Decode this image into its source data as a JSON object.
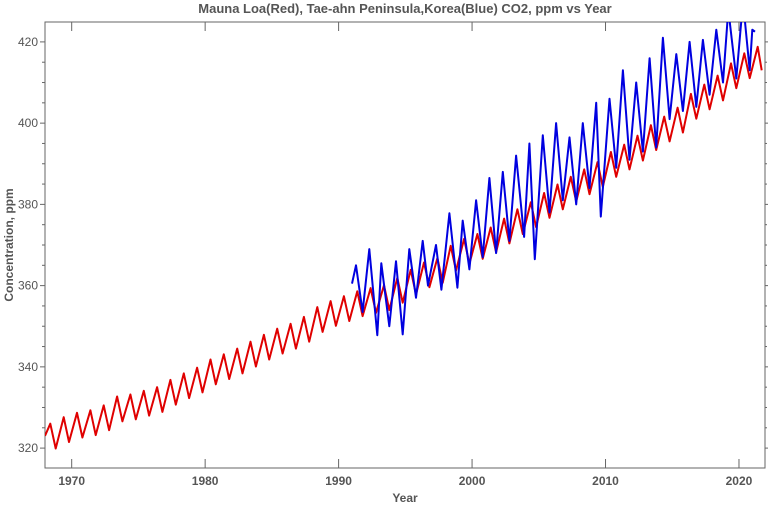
{
  "chart_data": {
    "type": "line",
    "title": "Mauna Loa(Red), Tae-ahn Peninsula,Korea(Blue) CO2, ppm vs Year",
    "xlabel": "Year",
    "ylabel": "Concentration, ppm",
    "xlim": [
      1968.0,
      2021.95
    ],
    "ylim": [
      315.1,
      424.9
    ],
    "xticks": [
      1970,
      1980,
      1990,
      2000,
      2010,
      2020
    ],
    "yticks": [
      320,
      340,
      360,
      380,
      400,
      420
    ],
    "grid": false,
    "legend": "none",
    "series": [
      {
        "color": "#e00000",
        "points": [
          [
            1968.0,
            323.0
          ],
          [
            1968.4,
            326.0
          ],
          [
            1968.8,
            319.9
          ],
          [
            1969.4,
            327.6
          ],
          [
            1969.8,
            321.5
          ],
          [
            1970.4,
            328.7
          ],
          [
            1970.8,
            322.6
          ],
          [
            1971.4,
            329.3
          ],
          [
            1971.8,
            323.2
          ],
          [
            1972.4,
            330.5
          ],
          [
            1972.8,
            324.4
          ],
          [
            1973.4,
            332.7
          ],
          [
            1973.8,
            326.6
          ],
          [
            1974.4,
            333.2
          ],
          [
            1974.8,
            327.1
          ],
          [
            1975.4,
            334.1
          ],
          [
            1975.8,
            328.0
          ],
          [
            1976.4,
            335.0
          ],
          [
            1976.8,
            328.9
          ],
          [
            1977.4,
            336.8
          ],
          [
            1977.8,
            330.7
          ],
          [
            1978.4,
            338.4
          ],
          [
            1978.8,
            332.3
          ],
          [
            1979.4,
            339.8
          ],
          [
            1979.8,
            333.7
          ],
          [
            1980.4,
            341.8
          ],
          [
            1980.8,
            335.7
          ],
          [
            1981.4,
            343.1
          ],
          [
            1981.8,
            337.0
          ],
          [
            1982.4,
            344.5
          ],
          [
            1982.8,
            338.4
          ],
          [
            1983.4,
            346.2
          ],
          [
            1983.8,
            340.1
          ],
          [
            1984.4,
            347.9
          ],
          [
            1984.8,
            341.8
          ],
          [
            1985.4,
            349.4
          ],
          [
            1985.8,
            343.3
          ],
          [
            1986.4,
            350.6
          ],
          [
            1986.8,
            344.5
          ],
          [
            1987.4,
            352.3
          ],
          [
            1987.8,
            346.2
          ],
          [
            1988.4,
            354.7
          ],
          [
            1988.8,
            348.6
          ],
          [
            1989.4,
            356.2
          ],
          [
            1989.8,
            350.1
          ],
          [
            1990.4,
            357.4
          ],
          [
            1990.8,
            351.3
          ],
          [
            1991.4,
            358.6
          ],
          [
            1991.8,
            352.5
          ],
          [
            1992.4,
            359.4
          ],
          [
            1992.8,
            353.3
          ],
          [
            1993.4,
            360.1
          ],
          [
            1993.8,
            354.0
          ],
          [
            1994.4,
            361.9
          ],
          [
            1994.8,
            355.8
          ],
          [
            1995.4,
            363.9
          ],
          [
            1995.8,
            357.8
          ],
          [
            1996.4,
            365.7
          ],
          [
            1996.8,
            359.6
          ],
          [
            1997.4,
            366.8
          ],
          [
            1997.8,
            360.7
          ],
          [
            1998.4,
            369.8
          ],
          [
            1998.8,
            363.7
          ],
          [
            1999.4,
            371.5
          ],
          [
            1999.8,
            365.4
          ],
          [
            2000.4,
            372.7
          ],
          [
            2000.8,
            366.6
          ],
          [
            2001.4,
            374.3
          ],
          [
            2001.8,
            368.2
          ],
          [
            2002.4,
            376.5
          ],
          [
            2002.8,
            370.4
          ],
          [
            2003.4,
            378.8
          ],
          [
            2003.8,
            372.7
          ],
          [
            2004.4,
            380.5
          ],
          [
            2004.8,
            374.4
          ],
          [
            2005.4,
            382.8
          ],
          [
            2005.8,
            376.7
          ],
          [
            2006.4,
            384.9
          ],
          [
            2006.8,
            378.8
          ],
          [
            2007.4,
            386.8
          ],
          [
            2007.8,
            380.7
          ],
          [
            2008.4,
            388.6
          ],
          [
            2008.8,
            382.5
          ],
          [
            2009.4,
            390.4
          ],
          [
            2009.8,
            384.3
          ],
          [
            2010.4,
            392.9
          ],
          [
            2010.8,
            386.8
          ],
          [
            2011.4,
            394.7
          ],
          [
            2011.8,
            388.6
          ],
          [
            2012.4,
            396.9
          ],
          [
            2012.8,
            390.8
          ],
          [
            2013.4,
            399.5
          ],
          [
            2013.8,
            393.4
          ],
          [
            2014.4,
            401.6
          ],
          [
            2014.8,
            395.5
          ],
          [
            2015.4,
            403.8
          ],
          [
            2015.8,
            397.7
          ],
          [
            2016.4,
            407.2
          ],
          [
            2016.8,
            401.1
          ],
          [
            2017.4,
            409.5
          ],
          [
            2017.8,
            403.4
          ],
          [
            2018.4,
            411.7
          ],
          [
            2018.8,
            405.6
          ],
          [
            2019.4,
            414.7
          ],
          [
            2019.8,
            408.6
          ],
          [
            2020.4,
            417.2
          ],
          [
            2020.8,
            411.1
          ],
          [
            2021.4,
            418.8
          ],
          [
            2021.7,
            413.0
          ]
        ]
      },
      {
        "color": "#0000e0",
        "points": [
          [
            1991.0,
            360.5
          ],
          [
            1991.3,
            365.0
          ],
          [
            1991.8,
            353.5
          ],
          [
            1992.3,
            369.0
          ],
          [
            1992.9,
            347.8
          ],
          [
            1993.2,
            365.5
          ],
          [
            1993.8,
            350.0
          ],
          [
            1994.3,
            366.0
          ],
          [
            1994.8,
            348.0
          ],
          [
            1995.3,
            369.0
          ],
          [
            1995.8,
            357.0
          ],
          [
            1996.3,
            371.0
          ],
          [
            1996.7,
            360.0
          ],
          [
            1997.3,
            370.0
          ],
          [
            1997.7,
            359.0
          ],
          [
            1998.3,
            377.8
          ],
          [
            1998.9,
            359.5
          ],
          [
            1999.3,
            376.0
          ],
          [
            1999.8,
            364.0
          ],
          [
            2000.3,
            381.0
          ],
          [
            2000.8,
            367.0
          ],
          [
            2001.3,
            386.5
          ],
          [
            2001.8,
            368.0
          ],
          [
            2002.3,
            388.0
          ],
          [
            2002.8,
            371.0
          ],
          [
            2003.3,
            392.0
          ],
          [
            2003.9,
            372.0
          ],
          [
            2004.3,
            395.0
          ],
          [
            2004.7,
            366.5
          ],
          [
            2005.3,
            397.0
          ],
          [
            2005.8,
            378.0
          ],
          [
            2006.3,
            400.0
          ],
          [
            2006.8,
            381.0
          ],
          [
            2007.3,
            396.5
          ],
          [
            2007.8,
            380.0
          ],
          [
            2008.3,
            400.0
          ],
          [
            2008.8,
            384.0
          ],
          [
            2009.3,
            405.0
          ],
          [
            2009.65,
            377.0
          ],
          [
            2010.3,
            406.0
          ],
          [
            2010.8,
            389.0
          ],
          [
            2011.3,
            413.0
          ],
          [
            2011.8,
            391.0
          ],
          [
            2012.3,
            410.0
          ],
          [
            2012.8,
            393.0
          ],
          [
            2013.3,
            416.0
          ],
          [
            2013.8,
            394.0
          ],
          [
            2014.3,
            421.0
          ],
          [
            2014.8,
            401.0
          ],
          [
            2015.3,
            417.0
          ],
          [
            2015.8,
            403.0
          ],
          [
            2016.3,
            420.0
          ],
          [
            2016.8,
            404.0
          ],
          [
            2017.3,
            420.5
          ],
          [
            2017.8,
            407.0
          ],
          [
            2018.3,
            423.0
          ],
          [
            2018.8,
            410.0
          ],
          [
            2019.2,
            428.0
          ],
          [
            2019.8,
            411.0
          ],
          [
            2020.3,
            430.0
          ],
          [
            2020.8,
            413.0
          ],
          [
            2021.0,
            423.0
          ],
          [
            2021.2,
            422.5
          ]
        ]
      }
    ]
  }
}
